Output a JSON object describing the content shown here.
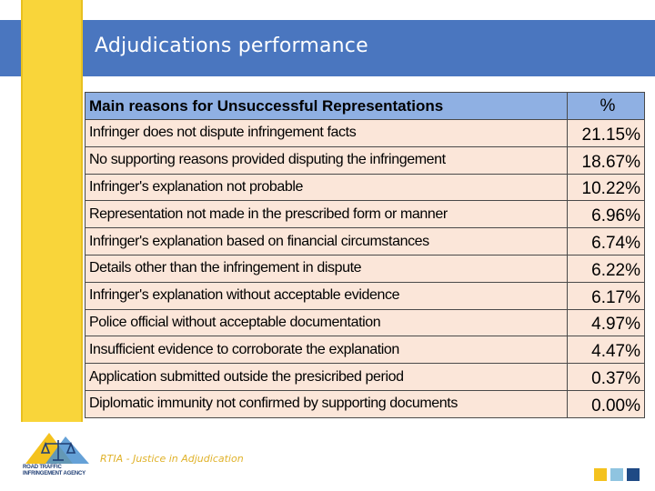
{
  "slide": {
    "title": "Adjudications performance",
    "footer": "RTIA - Justice in Adjudication"
  },
  "logo": {
    "icon": "scales-of-justice-icon",
    "text": "ROAD TRAFFIC INFRINGEMENT AGENCY"
  },
  "colors": {
    "title_band": "#4a76bf",
    "accent_yellow": "#f9d53a",
    "table_header": "#8fb0e3",
    "table_row": "#fbe6d9",
    "square_yellow": "#f4c21e",
    "square_light_blue": "#8fc4e0",
    "square_dark_blue": "#1f4a85"
  },
  "table": {
    "headers": [
      "Main reasons for Unsuccessful Representations",
      "%"
    ],
    "rows": [
      {
        "reason": "Infringer does not dispute infringement facts",
        "percent": "21.15%"
      },
      {
        "reason": "No supporting reasons provided disputing the infringement",
        "percent": "18.67%"
      },
      {
        "reason": "Infringer's explanation not probable",
        "percent": "10.22%"
      },
      {
        "reason": "Representation not made in the prescribed form or manner",
        "percent": "6.96%"
      },
      {
        "reason": "Infringer's explanation based on financial circumstances",
        "percent": "6.74%"
      },
      {
        "reason": "Details other than the infringement in dispute",
        "percent": "6.22%"
      },
      {
        "reason": "Infringer's explanation without acceptable evidence",
        "percent": "6.17%"
      },
      {
        "reason": "Police official without acceptable documentation",
        "percent": "4.97%"
      },
      {
        "reason": "Insufficient evidence to corroborate the explanation",
        "percent": "4.47%"
      },
      {
        "reason": "Application submitted outside the presicribed period",
        "percent": "0.37%"
      },
      {
        "reason": "Diplomatic immunity not confirmed by supporting documents",
        "percent": "0.00%"
      }
    ]
  }
}
